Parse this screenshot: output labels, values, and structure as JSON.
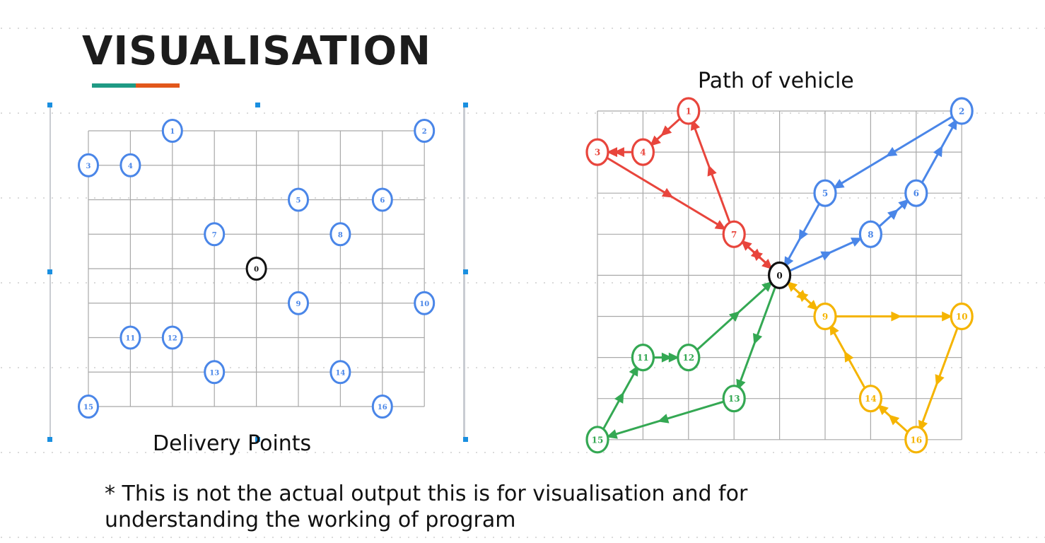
{
  "slide": {
    "title": "VISUALISATION",
    "accent_colors": [
      "#1f9a84",
      "#e2571b"
    ],
    "footnote_line1": "*  This is not the actual output this is for visualisation and for",
    "footnote_line2": "understanding the working of program"
  },
  "delivery_points": {
    "caption": "Delivery Points",
    "node_color": "#4a86e8",
    "depot_color": "#111111",
    "depot": {
      "id": "0",
      "col": 4,
      "row": 4
    },
    "nodes": [
      {
        "id": "1",
        "col": 2,
        "row": 0
      },
      {
        "id": "2",
        "col": 8,
        "row": 0
      },
      {
        "id": "3",
        "col": 0,
        "row": 1
      },
      {
        "id": "4",
        "col": 1,
        "row": 1
      },
      {
        "id": "5",
        "col": 5,
        "row": 2
      },
      {
        "id": "6",
        "col": 7,
        "row": 2
      },
      {
        "id": "7",
        "col": 3,
        "row": 3
      },
      {
        "id": "8",
        "col": 6,
        "row": 3
      },
      {
        "id": "9",
        "col": 5,
        "row": 5
      },
      {
        "id": "10",
        "col": 8,
        "row": 5
      },
      {
        "id": "11",
        "col": 1,
        "row": 6
      },
      {
        "id": "12",
        "col": 2,
        "row": 6
      },
      {
        "id": "13",
        "col": 3,
        "row": 7
      },
      {
        "id": "14",
        "col": 6,
        "row": 7
      },
      {
        "id": "15",
        "col": 0,
        "row": 8
      },
      {
        "id": "16",
        "col": 7,
        "row": 8
      }
    ]
  },
  "vehicle_path": {
    "caption": "Path of vehicle",
    "routes": [
      {
        "color": "#e8453c",
        "stops": [
          "0",
          "7",
          "1",
          "4",
          "3",
          "7",
          "0"
        ]
      },
      {
        "color": "#4a86e8",
        "stops": [
          "0",
          "8",
          "6",
          "2",
          "5",
          "0"
        ]
      },
      {
        "color": "#f5b400",
        "stops": [
          "0",
          "9",
          "10",
          "16",
          "14",
          "9",
          "0"
        ]
      },
      {
        "color": "#34a853",
        "stops": [
          "0",
          "13",
          "15",
          "11",
          "12",
          "0"
        ]
      }
    ],
    "depot": {
      "id": "0",
      "col": 4,
      "row": 4
    },
    "nodes": [
      {
        "id": "1",
        "col": 2,
        "row": 0,
        "color": "#e8453c"
      },
      {
        "id": "2",
        "col": 8,
        "row": 0,
        "color": "#4a86e8"
      },
      {
        "id": "3",
        "col": 0,
        "row": 1,
        "color": "#e8453c"
      },
      {
        "id": "4",
        "col": 1,
        "row": 1,
        "color": "#e8453c"
      },
      {
        "id": "5",
        "col": 5,
        "row": 2,
        "color": "#4a86e8"
      },
      {
        "id": "6",
        "col": 7,
        "row": 2,
        "color": "#4a86e8"
      },
      {
        "id": "7",
        "col": 3,
        "row": 3,
        "color": "#e8453c"
      },
      {
        "id": "8",
        "col": 6,
        "row": 3,
        "color": "#4a86e8"
      },
      {
        "id": "9",
        "col": 5,
        "row": 5,
        "color": "#f5b400"
      },
      {
        "id": "10",
        "col": 8,
        "row": 5,
        "color": "#f5b400"
      },
      {
        "id": "11",
        "col": 1,
        "row": 6,
        "color": "#34a853"
      },
      {
        "id": "12",
        "col": 2,
        "row": 6,
        "color": "#34a853"
      },
      {
        "id": "13",
        "col": 3,
        "row": 7,
        "color": "#34a853"
      },
      {
        "id": "14",
        "col": 6,
        "row": 7,
        "color": "#f5b400"
      },
      {
        "id": "15",
        "col": 0,
        "row": 8,
        "color": "#34a853"
      },
      {
        "id": "16",
        "col": 7,
        "row": 8,
        "color": "#f5b400"
      }
    ]
  }
}
